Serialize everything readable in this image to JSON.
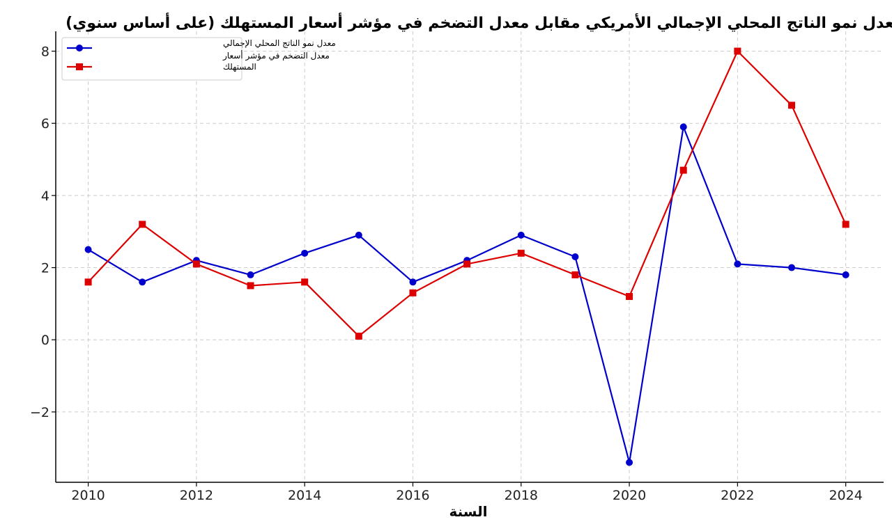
{
  "chart_data": {
    "type": "line",
    "title": "معدل نمو الناتج المحلي الإجمالي الأمريكي مقابل معدل التضخم في مؤشر أسعار المستهلك (على أساس سنوي)",
    "xlabel": "السنة",
    "ylabel": "",
    "x": [
      2010,
      2011,
      2012,
      2013,
      2014,
      2015,
      2016,
      2017,
      2018,
      2019,
      2020,
      2021,
      2022,
      2023,
      2024
    ],
    "series": [
      {
        "name": "معدل نمو الناتج المحلي الإجمالي",
        "color": "#0000cc",
        "marker": "circle",
        "values": [
          2.5,
          1.6,
          2.2,
          1.8,
          2.4,
          2.9,
          1.6,
          2.2,
          2.9,
          2.3,
          -3.4,
          5.9,
          2.1,
          2.0,
          1.8
        ]
      },
      {
        "name": "معدل التضخم في مؤشر أسعار المستهلك",
        "color": "#dd0000",
        "marker": "square",
        "values": [
          1.6,
          3.2,
          2.1,
          1.5,
          1.6,
          0.1,
          1.3,
          2.1,
          2.4,
          1.8,
          1.2,
          4.7,
          8.0,
          6.5,
          3.2
        ]
      }
    ],
    "xticks": [
      2010,
      2012,
      2014,
      2016,
      2018,
      2020,
      2022,
      2024
    ],
    "yticks": [
      -2,
      0,
      2,
      4,
      6,
      8
    ],
    "ytick_labels": [
      "−2",
      "0",
      "2",
      "4",
      "6",
      "8"
    ],
    "xlim": [
      2009.4,
      2024.7
    ],
    "ylim": [
      -3.95,
      8.55
    ],
    "grid": true,
    "legend_position": "top-left",
    "legend_lines": [
      [
        "معدل نمو الناتج المحلي الإجمالي"
      ],
      [
        "معدل التضخم في مؤشر أسعار",
        "المستهلك"
      ]
    ]
  }
}
